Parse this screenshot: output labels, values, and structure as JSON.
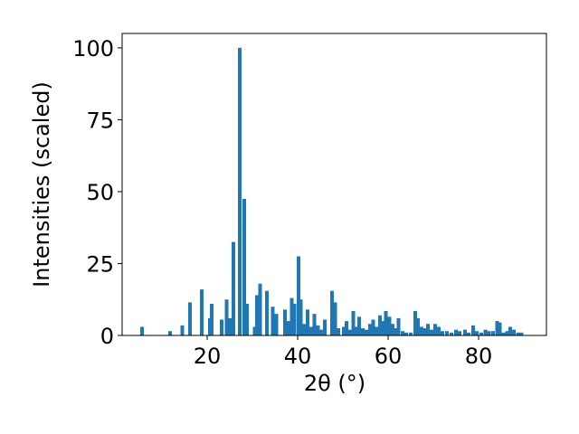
{
  "chart_data": {
    "type": "bar",
    "xlabel": "2θ (°)",
    "ylabel": "Intensities (scaled)",
    "x": [
      5.6,
      11.8,
      14.5,
      16.2,
      18.8,
      20.6,
      21.0,
      23.2,
      24.3,
      25.0,
      25.8,
      27.2,
      28.2,
      28.8,
      30.5,
      31.0,
      31.7,
      33.2,
      34.5,
      35.3,
      37.2,
      38.0,
      38.7,
      39.3,
      40.2,
      40.7,
      41.5,
      42.2,
      43.0,
      43.7,
      44.5,
      45.3,
      46.0,
      47.6,
      48.3,
      49.0,
      50.2,
      50.8,
      51.6,
      52.3,
      53.0,
      53.6,
      54.4,
      55.2,
      56.0,
      56.7,
      57.4,
      58.2,
      59.0,
      59.5,
      60.3,
      61.0,
      61.6,
      62.3,
      63.2,
      64.0,
      65.0,
      66.0,
      66.6,
      67.4,
      68.0,
      68.8,
      69.6,
      70.4,
      71.2,
      72.0,
      73.0,
      74.0,
      75.0,
      75.8,
      77.0,
      77.8,
      78.8,
      79.6,
      80.6,
      81.5,
      82.3,
      83.2,
      84.1,
      84.7,
      85.5,
      86.3,
      87.0,
      87.8,
      88.7,
      89.5
    ],
    "values": [
      3,
      1.5,
      3.5,
      11.5,
      16,
      6,
      11,
      5.5,
      12.5,
      6,
      32.5,
      100,
      47.5,
      11,
      3,
      14,
      18,
      15.5,
      10,
      7.5,
      9,
      5,
      13,
      11,
      27.5,
      12.5,
      4,
      9,
      3,
      7.5,
      3.5,
      2,
      5.5,
      15.5,
      11.5,
      2.5,
      3,
      5,
      2,
      8.5,
      3,
      6.5,
      2.5,
      2,
      4,
      5.5,
      3,
      7,
      5,
      8.5,
      6.5,
      4,
      2.5,
      6,
      1.5,
      1,
      1,
      8.5,
      6,
      3,
      2.5,
      4,
      2,
      4,
      3,
      1.5,
      1.5,
      1,
      2,
      1.5,
      2,
      1,
      3.5,
      1.5,
      1,
      2,
      1.5,
      1.5,
      5,
      4.5,
      1,
      1.5,
      3,
      2,
      1,
      1
    ],
    "color": "#1f77b4",
    "xlim": [
      1.2,
      95
    ],
    "ylim": [
      0,
      105
    ],
    "xticks": [
      20,
      40,
      60,
      80
    ],
    "yticks": [
      0,
      25,
      50,
      75,
      100
    ]
  }
}
